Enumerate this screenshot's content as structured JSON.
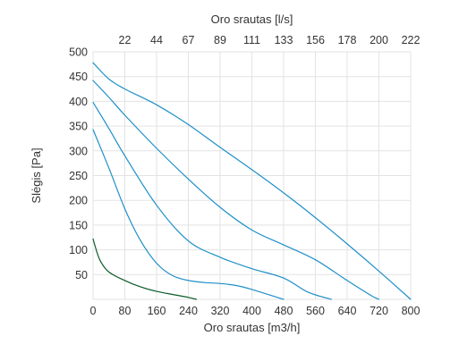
{
  "chart_data": {
    "type": "line",
    "title": "",
    "xlabel": "Oro srautas [m3/h]",
    "x2label": "Oro srautas [l/s]",
    "ylabel": "Slėgis [Pa]",
    "xlim": [
      0,
      800
    ],
    "ylim": [
      0,
      500
    ],
    "grid": true,
    "x_ticks": [
      0,
      80,
      160,
      240,
      320,
      400,
      480,
      560,
      640,
      720,
      800
    ],
    "x_tick_labels": [
      "0",
      "80",
      "160",
      "240",
      "320",
      "400",
      "480",
      "560",
      "640",
      "720",
      "800"
    ],
    "y_ticks": [
      50,
      100,
      150,
      200,
      250,
      300,
      350,
      400,
      450,
      500
    ],
    "y_tick_labels": [
      "50",
      "100",
      "150",
      "200",
      "250",
      "300",
      "350",
      "400",
      "450",
      "500"
    ],
    "x2_ticks": [
      80,
      160,
      240,
      320,
      400,
      480,
      560,
      640,
      720,
      800
    ],
    "x2_tick_labels": [
      "22",
      "44",
      "67",
      "89",
      "111",
      "133",
      "156",
      "178",
      "200",
      "222"
    ],
    "colors": {
      "primary": "#1f8fc9",
      "dark": "#0b5a2a",
      "grid": "#e3e3e3"
    },
    "series": [
      {
        "color": "#1f8fc9",
        "x": [
          0,
          40,
          80,
          160,
          240,
          320,
          400,
          480,
          560,
          640,
          720,
          800
        ],
        "y": [
          478,
          445,
          425,
          393,
          353,
          307,
          262,
          215,
          165,
          112,
          57,
          0
        ]
      },
      {
        "color": "#1f8fc9",
        "x": [
          0,
          40,
          80,
          160,
          240,
          320,
          400,
          480,
          560,
          640,
          700,
          720
        ],
        "y": [
          442,
          408,
          372,
          305,
          243,
          186,
          140,
          110,
          80,
          38,
          8,
          0
        ]
      },
      {
        "color": "#1f8fc9",
        "x": [
          0,
          40,
          80,
          160,
          240,
          320,
          400,
          480,
          540,
          600
        ],
        "y": [
          398,
          345,
          290,
          190,
          118,
          85,
          62,
          43,
          15,
          0
        ]
      },
      {
        "color": "#1f8fc9",
        "x": [
          0,
          40,
          80,
          120,
          160,
          200,
          240,
          280,
          320,
          360,
          400,
          480
        ],
        "y": [
          343,
          265,
          183,
          118,
          73,
          48,
          38,
          34,
          32,
          28,
          20,
          0
        ]
      },
      {
        "color": "#0b5a2a",
        "x": [
          0,
          10,
          20,
          40,
          80,
          120,
          160,
          200,
          240,
          260
        ],
        "y": [
          122,
          95,
          75,
          55,
          38,
          25,
          16,
          10,
          4,
          0
        ]
      }
    ]
  }
}
